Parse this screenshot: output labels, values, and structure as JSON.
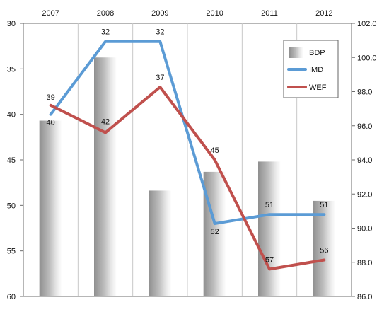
{
  "chart_data": {
    "type": "bar+line",
    "title": "",
    "categories": [
      "2007",
      "2008",
      "2009",
      "2010",
      "2011",
      "2012"
    ],
    "left_axis": {
      "range": [
        30,
        60
      ],
      "inverted": true,
      "ticks": [
        "30",
        "35",
        "40",
        "45",
        "50",
        "55",
        "60"
      ]
    },
    "right_axis": {
      "range": [
        86.0,
        102.0
      ],
      "ticks": [
        "102.0",
        "100.0",
        "98.0",
        "96.0",
        "94.0",
        "92.0",
        "90.0",
        "88.0",
        "86.0"
      ]
    },
    "grid": {
      "vertical": true,
      "horizontal": false
    },
    "legend": {
      "position": "top-right",
      "items": [
        {
          "label": "BDP",
          "kind": "bar"
        },
        {
          "label": "IMD",
          "kind": "line"
        },
        {
          "label": "WEF",
          "kind": "line"
        }
      ]
    },
    "series": [
      {
        "name": "BDP",
        "type": "bar",
        "axis": "right",
        "values": [
          96.3,
          100.0,
          92.2,
          93.3,
          93.9,
          91.6
        ],
        "color": "#bdbdbd"
      },
      {
        "name": "IMD",
        "type": "line",
        "axis": "left",
        "values": [
          40,
          32,
          32,
          52,
          51,
          51
        ],
        "labels": [
          "40",
          "32",
          "32",
          "52",
          "51",
          "51"
        ],
        "color": "#5b9bd5"
      },
      {
        "name": "WEF",
        "type": "line",
        "axis": "left",
        "values": [
          39,
          42,
          37,
          45,
          57,
          56
        ],
        "labels": [
          "39",
          "42",
          "37",
          "45",
          "57",
          "56"
        ],
        "color": "#c0504d"
      }
    ]
  }
}
